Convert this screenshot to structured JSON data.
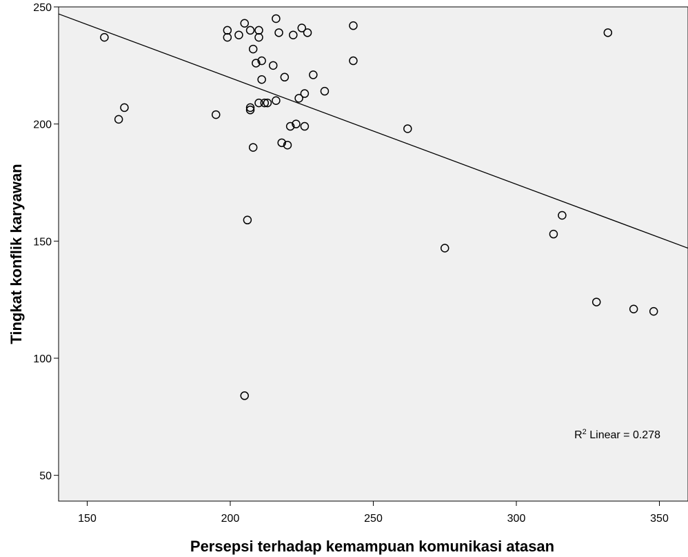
{
  "chart_data": {
    "type": "scatter",
    "xlabel": "Persepsi terhadap kemampuan komunikasi atasan",
    "ylabel": "Tingkat konflik karyawan",
    "xlim": [
      140,
      360
    ],
    "ylim": [
      39,
      250
    ],
    "x_ticks": [
      150,
      200,
      250,
      300,
      350
    ],
    "y_ticks": [
      50,
      100,
      150,
      200,
      250
    ],
    "x_tick_labels": [
      "150",
      "200",
      "250",
      "300",
      "350"
    ],
    "y_tick_labels": [
      "50",
      "100",
      "150",
      "200",
      "250"
    ],
    "grid": false,
    "annotation": {
      "r_symbol": "R",
      "superscript": "2",
      "rest": " Linear = 0.278"
    },
    "fit_line": {
      "x": [
        140,
        360
      ],
      "y": [
        247,
        147
      ]
    },
    "points": [
      {
        "x": 156,
        "y": 237
      },
      {
        "x": 161,
        "y": 202
      },
      {
        "x": 163,
        "y": 207
      },
      {
        "x": 195,
        "y": 204
      },
      {
        "x": 199,
        "y": 240
      },
      {
        "x": 199,
        "y": 237
      },
      {
        "x": 203,
        "y": 238
      },
      {
        "x": 205,
        "y": 243
      },
      {
        "x": 207,
        "y": 240
      },
      {
        "x": 208,
        "y": 232
      },
      {
        "x": 209,
        "y": 226
      },
      {
        "x": 210,
        "y": 240
      },
      {
        "x": 210,
        "y": 237
      },
      {
        "x": 211,
        "y": 227
      },
      {
        "x": 211,
        "y": 219
      },
      {
        "x": 207,
        "y": 207
      },
      {
        "x": 207,
        "y": 206
      },
      {
        "x": 210,
        "y": 209
      },
      {
        "x": 212,
        "y": 209
      },
      {
        "x": 213,
        "y": 209
      },
      {
        "x": 208,
        "y": 190
      },
      {
        "x": 206,
        "y": 159
      },
      {
        "x": 205,
        "y": 84
      },
      {
        "x": 215,
        "y": 225
      },
      {
        "x": 216,
        "y": 245
      },
      {
        "x": 217,
        "y": 239
      },
      {
        "x": 216,
        "y": 210
      },
      {
        "x": 219,
        "y": 220
      },
      {
        "x": 218,
        "y": 192
      },
      {
        "x": 220,
        "y": 191
      },
      {
        "x": 222,
        "y": 238
      },
      {
        "x": 225,
        "y": 241
      },
      {
        "x": 227,
        "y": 239
      },
      {
        "x": 221,
        "y": 199
      },
      {
        "x": 223,
        "y": 200
      },
      {
        "x": 226,
        "y": 199
      },
      {
        "x": 224,
        "y": 211
      },
      {
        "x": 226,
        "y": 213
      },
      {
        "x": 229,
        "y": 221
      },
      {
        "x": 233,
        "y": 214
      },
      {
        "x": 243,
        "y": 242
      },
      {
        "x": 243,
        "y": 227
      },
      {
        "x": 262,
        "y": 198
      },
      {
        "x": 275,
        "y": 147
      },
      {
        "x": 313,
        "y": 153
      },
      {
        "x": 316,
        "y": 161
      },
      {
        "x": 332,
        "y": 239
      },
      {
        "x": 328,
        "y": 124
      },
      {
        "x": 341,
        "y": 121
      },
      {
        "x": 348,
        "y": 120
      }
    ]
  },
  "colors": {
    "plot_background": "#f0f0f0",
    "axis": "#000000",
    "marker_stroke": "#000000",
    "fit_line": "#000000"
  }
}
